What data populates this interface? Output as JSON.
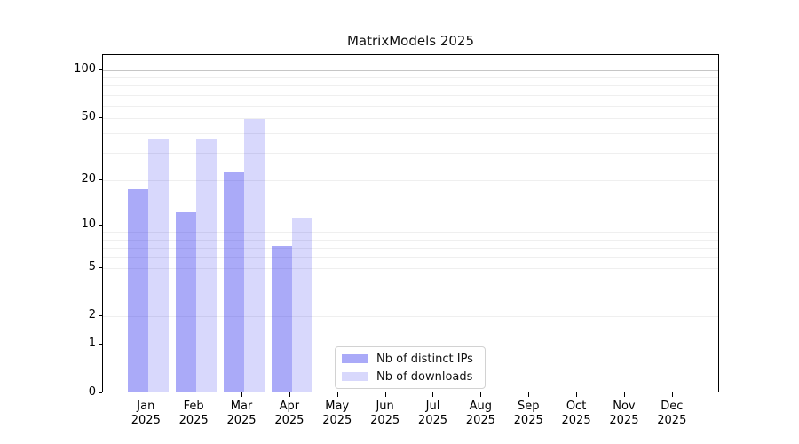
{
  "title": "MatrixModels 2025",
  "chart_data": {
    "type": "bar",
    "title": "MatrixModels 2025",
    "categories": [
      "Jan",
      "Feb",
      "Mar",
      "Apr",
      "May",
      "Jun",
      "Jul",
      "Aug",
      "Sep",
      "Oct",
      "Nov",
      "Dec"
    ],
    "year": "2025",
    "series": [
      {
        "name": "Nb of distinct IPs",
        "color": "rgba(20,20,235,0.36)",
        "color_hex": "#aaaaf8",
        "values": [
          17,
          12,
          22,
          7,
          null,
          null,
          null,
          null,
          null,
          null,
          null,
          null
        ]
      },
      {
        "name": "Nb of downloads",
        "color": "rgba(20,20,235,0.165)",
        "color_hex": "#d8d8f8",
        "values": [
          36,
          36,
          48,
          11,
          null,
          null,
          null,
          null,
          null,
          null,
          null,
          null
        ]
      }
    ],
    "xlabel": "",
    "ylabel": "",
    "yscale": "log1p",
    "yticks": [
      0,
      1,
      2,
      5,
      10,
      20,
      50,
      100
    ],
    "ylim": [
      0,
      124
    ],
    "grid": true,
    "legend_position": "lower center"
  },
  "colors": {
    "bar_dark": "#aaaaf8",
    "bar_light": "#d8d8f8",
    "grid_major": "#c6c6c6",
    "grid_minor": "#efefef",
    "axis": "#000000",
    "background": "#ffffff"
  }
}
